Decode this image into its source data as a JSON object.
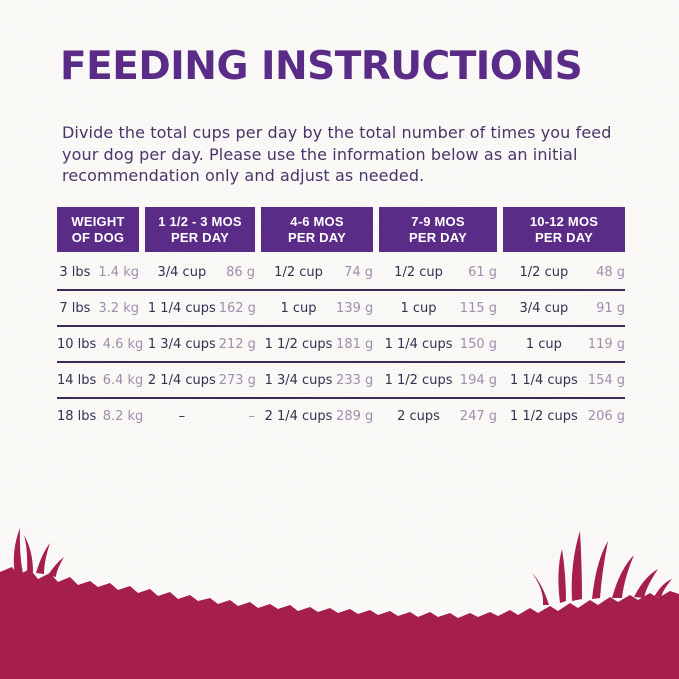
{
  "colors": {
    "purple": "#5b2c87",
    "divider": "#3b2c55",
    "value-dark": "#37304f",
    "value-light": "#9c90ad",
    "body-text": "#463769",
    "grass": "#a51e4d",
    "bg": "#fcfbf9"
  },
  "title": "FEEDING INSTRUCTIONS",
  "intro": "Divide the total cups per day by the total number of times you feed your dog per day. Please use the information below as an initial recommendation only and adjust as needed.",
  "table": {
    "headers": [
      {
        "line1": "WEIGHT",
        "line2": "OF DOG"
      },
      {
        "line1": "1 1/2 - 3 MOS",
        "line2": "PER DAY"
      },
      {
        "line1": "4-6 MOS",
        "line2": "PER DAY"
      },
      {
        "line1": "7-9 MOS",
        "line2": "PER DAY"
      },
      {
        "line1": "10-12 MOS",
        "line2": "PER DAY"
      }
    ],
    "rows": [
      {
        "lbs": "3 lbs",
        "kg": "1.4 kg",
        "cols": [
          {
            "cups": "3/4 cup",
            "grams": "86 g"
          },
          {
            "cups": "1/2 cup",
            "grams": "74 g"
          },
          {
            "cups": "1/2 cup",
            "grams": "61 g"
          },
          {
            "cups": "1/2 cup",
            "grams": "48 g"
          }
        ]
      },
      {
        "lbs": "7 lbs",
        "kg": "3.2 kg",
        "cols": [
          {
            "cups": "1 1/4 cups",
            "grams": "162 g"
          },
          {
            "cups": "1 cup",
            "grams": "139 g"
          },
          {
            "cups": "1 cup",
            "grams": "115 g"
          },
          {
            "cups": "3/4 cup",
            "grams": "91 g"
          }
        ]
      },
      {
        "lbs": "10 lbs",
        "kg": "4.6 kg",
        "cols": [
          {
            "cups": "1 3/4 cups",
            "grams": "212 g"
          },
          {
            "cups": "1 1/2 cups",
            "grams": "181 g"
          },
          {
            "cups": "1 1/4 cups",
            "grams": "150 g"
          },
          {
            "cups": "1 cup",
            "grams": "119 g"
          }
        ]
      },
      {
        "lbs": "14 lbs",
        "kg": "6.4 kg",
        "cols": [
          {
            "cups": "2 1/4 cups",
            "grams": "273 g"
          },
          {
            "cups": "1 3/4 cups",
            "grams": "233 g"
          },
          {
            "cups": "1 1/2 cups",
            "grams": "194 g"
          },
          {
            "cups": "1 1/4 cups",
            "grams": "154 g"
          }
        ]
      },
      {
        "lbs": "18 lbs",
        "kg": "8.2 kg",
        "cols": [
          {
            "cups": "–",
            "grams": "–"
          },
          {
            "cups": "2 1/4 cups",
            "grams": "289 g"
          },
          {
            "cups": "2 cups",
            "grams": "247 g"
          },
          {
            "cups": "1 1/2 cups",
            "grams": "206 g"
          }
        ]
      }
    ]
  }
}
